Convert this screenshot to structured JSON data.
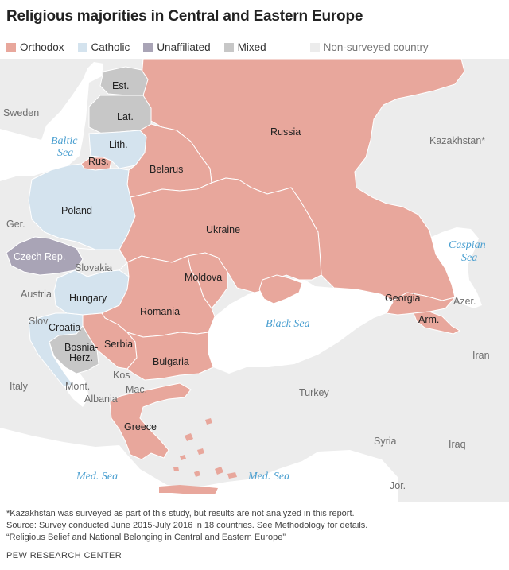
{
  "title": "Religious majorities in Central and Eastern Europe",
  "legend": [
    {
      "label": "Orthodox",
      "color": "#e8a79c"
    },
    {
      "label": "Catholic",
      "color": "#d4e3ee"
    },
    {
      "label": "Unaffiliated",
      "color": "#a9a4b6"
    },
    {
      "label": "Mixed",
      "color": "#c7c7c7"
    },
    {
      "label": "Non-surveyed country",
      "color": "#ececec"
    }
  ],
  "colors": {
    "orthodox": "#e8a79c",
    "catholic": "#d4e3ee",
    "unaffiliated": "#a9a4b6",
    "mixed": "#c7c7c7",
    "non_surveyed": "#ececec",
    "sea": "#ffffff",
    "sea_label": "#4a9fd0"
  },
  "map": {
    "countries": {
      "russia": "Russia",
      "belarus": "Belarus",
      "ukraine": "Ukraine",
      "moldova": "Moldova",
      "georgia": "Georgia",
      "armenia": "Arm.",
      "romania": "Romania",
      "bulgaria": "Bulgaria",
      "serbia": "Serbia",
      "greece": "Greece",
      "russia_kaliningrad": "Rus.",
      "poland": "Poland",
      "lithuania": "Lith.",
      "hungary": "Hungary",
      "croatia": "Croatia",
      "czech": "Czech Rep.",
      "estonia": "Est.",
      "latvia": "Lat.",
      "bosnia_line1": "Bosnia-",
      "bosnia_line2": "Herz."
    },
    "non_surveyed_labels": {
      "sweden": "Sweden",
      "kazakhstan": "Kazakhstan*",
      "germany": "Ger.",
      "slovakia": "Slovakia",
      "austria": "Austria",
      "slovenia": "Slov",
      "azerbaijan": "Azer.",
      "iran": "Iran",
      "italy": "Italy",
      "montenegro": "Mont.",
      "kosovo": "Kos",
      "macedonia": "Mac.",
      "albania": "Albania",
      "turkey": "Turkey",
      "syria": "Syria",
      "iraq": "Iraq",
      "jordan": "Jor."
    },
    "seas": {
      "baltic_line1": "Baltic",
      "baltic_line2": "Sea",
      "caspian_line1": "Caspian",
      "caspian_line2": "Sea",
      "black": "Black Sea",
      "med_west": "Med. Sea",
      "med_east": "Med. Sea"
    }
  },
  "notes": {
    "footnote": "*Kazakhstan was surveyed as part of this study, but results are not analyzed in this report.",
    "source": "Source: Survey conducted June 2015-July 2016 in 18 countries. See Methodology for details.",
    "report": "“Religious Belief and National Belonging in Central and Eastern Europe”"
  },
  "credit": "PEW RESEARCH CENTER"
}
